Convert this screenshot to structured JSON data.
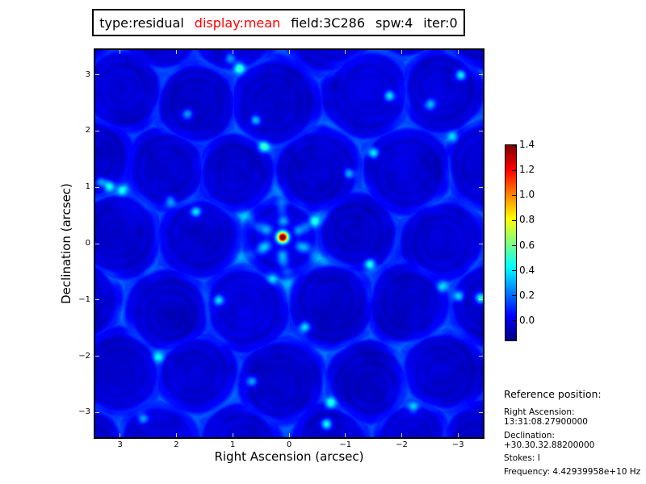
{
  "window": {
    "background": "#ffffff"
  },
  "title": {
    "segments": [
      {
        "text": "type:residual",
        "color": "#000000"
      },
      {
        "text": "display:mean",
        "color": "#ff0000"
      },
      {
        "text": "field:3C286",
        "color": "#000000"
      },
      {
        "text": "spw:4",
        "color": "#000000"
      },
      {
        "text": "iter:0",
        "color": "#000000"
      }
    ]
  },
  "axes": {
    "xlabel": "Right Ascension (arcsec)",
    "ylabel": "Declination (arcsec)"
  },
  "reference": {
    "title": "Reference position:",
    "lines": [
      "Right Ascension: 13:31:08.27900000",
      "Declination: +30.30.32.88200000",
      "Stokes: I",
      "Frequency: 4.42939958e+10 Hz"
    ]
  },
  "chart_data": {
    "type": "heatmap",
    "title": "type:residual  display:mean  field:3C286  spw:4  iter:0",
    "xlabel": "Right Ascension (arcsec)",
    "ylabel": "Declination (arcsec)",
    "xlim": [
      3.44,
      -3.44
    ],
    "ylim": [
      -3.44,
      3.44
    ],
    "xticks": [
      3,
      2,
      1,
      0,
      -1,
      -2,
      -3
    ],
    "yticks": [
      3,
      2,
      1,
      0,
      -1,
      -2,
      -3
    ],
    "grid": false,
    "colormap": "jet",
    "value_range": [
      -0.155,
      1.4
    ],
    "colorbar_ticks": [
      1.4,
      1.2,
      1.0,
      0.8,
      0.6,
      0.4,
      0.2,
      0.0
    ],
    "background_level": -0.03,
    "peak": {
      "ra": 0.12,
      "dec": 0.12,
      "value": 1.4
    },
    "spot_sigma_arcsec": 0.065,
    "psf_arm_angles_deg": [
      28,
      95,
      152,
      208,
      275,
      332
    ],
    "bright_spots": [
      [
        0.89,
        3.13,
        0.5
      ],
      [
        0.6,
        2.2,
        0.38
      ],
      [
        0.46,
        1.72,
        0.45
      ],
      [
        -1.49,
        1.62,
        0.42
      ],
      [
        3.2,
        1.03,
        0.5
      ],
      [
        2.97,
        0.96,
        0.35
      ],
      [
        1.66,
        0.57,
        0.42
      ],
      [
        2.11,
        0.76,
        0.32
      ],
      [
        -1.43,
        -0.36,
        0.45
      ],
      [
        -2.71,
        -0.76,
        0.35
      ],
      [
        -3.0,
        -0.93,
        0.4
      ],
      [
        -3.39,
        -0.96,
        0.48
      ],
      [
        1.25,
        -1.0,
        0.4
      ],
      [
        -0.27,
        -1.48,
        0.42
      ],
      [
        -0.73,
        -2.83,
        0.45
      ],
      [
        -0.66,
        -3.2,
        0.5
      ],
      [
        0.67,
        -2.44,
        0.35
      ],
      [
        2.32,
        -2.01,
        0.35
      ],
      [
        -1.78,
        2.63,
        0.42
      ],
      [
        -2.5,
        2.48,
        0.35
      ],
      [
        -1.06,
        1.25,
        0.35
      ],
      [
        -3.04,
        3.0,
        0.45
      ],
      [
        1.81,
        2.31,
        0.33
      ],
      [
        3.35,
        1.1,
        0.3
      ],
      [
        0.3,
        -0.62,
        0.3
      ],
      [
        -0.45,
        0.4,
        0.28
      ],
      [
        2.6,
        -3.1,
        0.3
      ],
      [
        -2.2,
        -2.9,
        0.32
      ],
      [
        1.05,
        3.3,
        0.3
      ],
      [
        -2.9,
        1.9,
        0.3
      ]
    ]
  }
}
